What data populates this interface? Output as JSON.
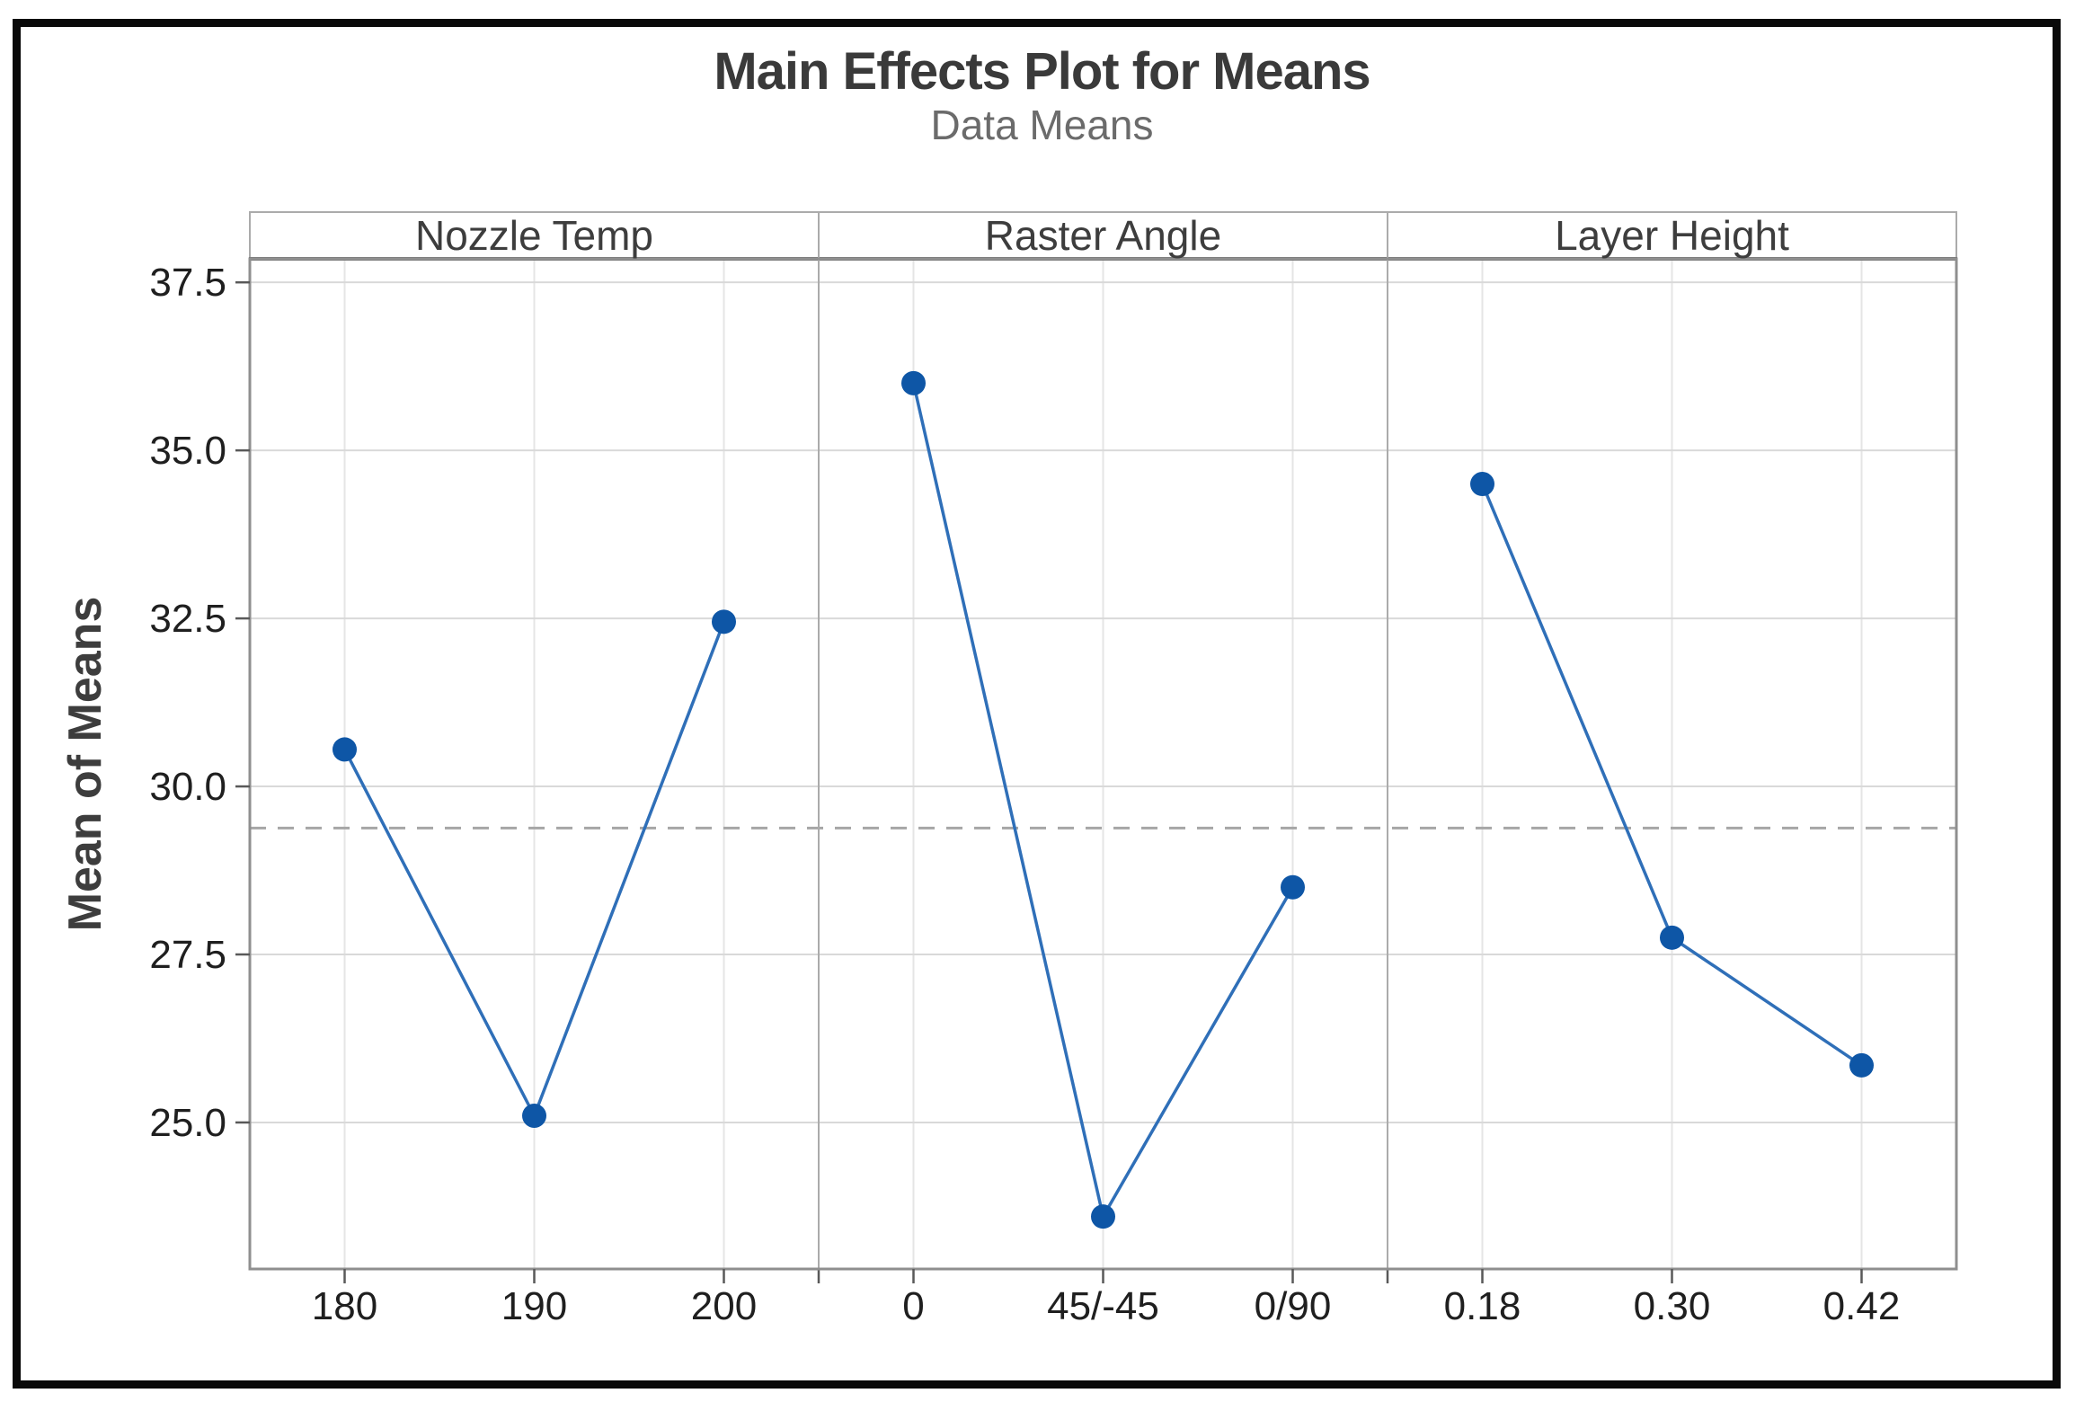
{
  "chart_data": {
    "type": "line",
    "title": "Main Effects Plot for Means",
    "subtitle": "Data Means",
    "ylabel": "Mean of Means",
    "ylim": [
      22.82,
      37.85
    ],
    "ytick_labels": [
      "37.5",
      "35.0",
      "32.5",
      "30.0",
      "27.5",
      "25.0"
    ],
    "grid": true,
    "reference_line_value": 29.38,
    "panels": [
      {
        "header": "Nozzle Temp",
        "categories": [
          "180",
          "190",
          "200"
        ],
        "values": [
          30.55,
          25.1,
          32.45
        ]
      },
      {
        "header": "Raster Angle",
        "categories": [
          "0",
          "45/-45",
          "0/90"
        ],
        "values": [
          36.0,
          23.6,
          28.5
        ]
      },
      {
        "header": "Layer Height",
        "categories": [
          "0.18",
          "0.30",
          "0.42"
        ],
        "values": [
          34.5,
          27.75,
          25.85
        ]
      }
    ],
    "colors": {
      "marker": "#0E56A6",
      "line": "#2F6FB8",
      "reference_line": "#A6A6A6",
      "gridline_h": "#D9D9D9",
      "gridline_v": "#E5E5E5",
      "plot_border": "#8F8F8F",
      "panel_border": "#ABABAB",
      "header_underline": "#6E6E6E",
      "tick_mark": "#595959",
      "title_text": "#3A3A3A",
      "subtitle_text": "#6B6B6B",
      "header_text": "#3D3D3D",
      "tick_label_text": "#1F1F1F",
      "axis_title_text": "#3D3D3D",
      "outer_border": "#0A0A0A",
      "background": "#FFFFFF"
    }
  }
}
